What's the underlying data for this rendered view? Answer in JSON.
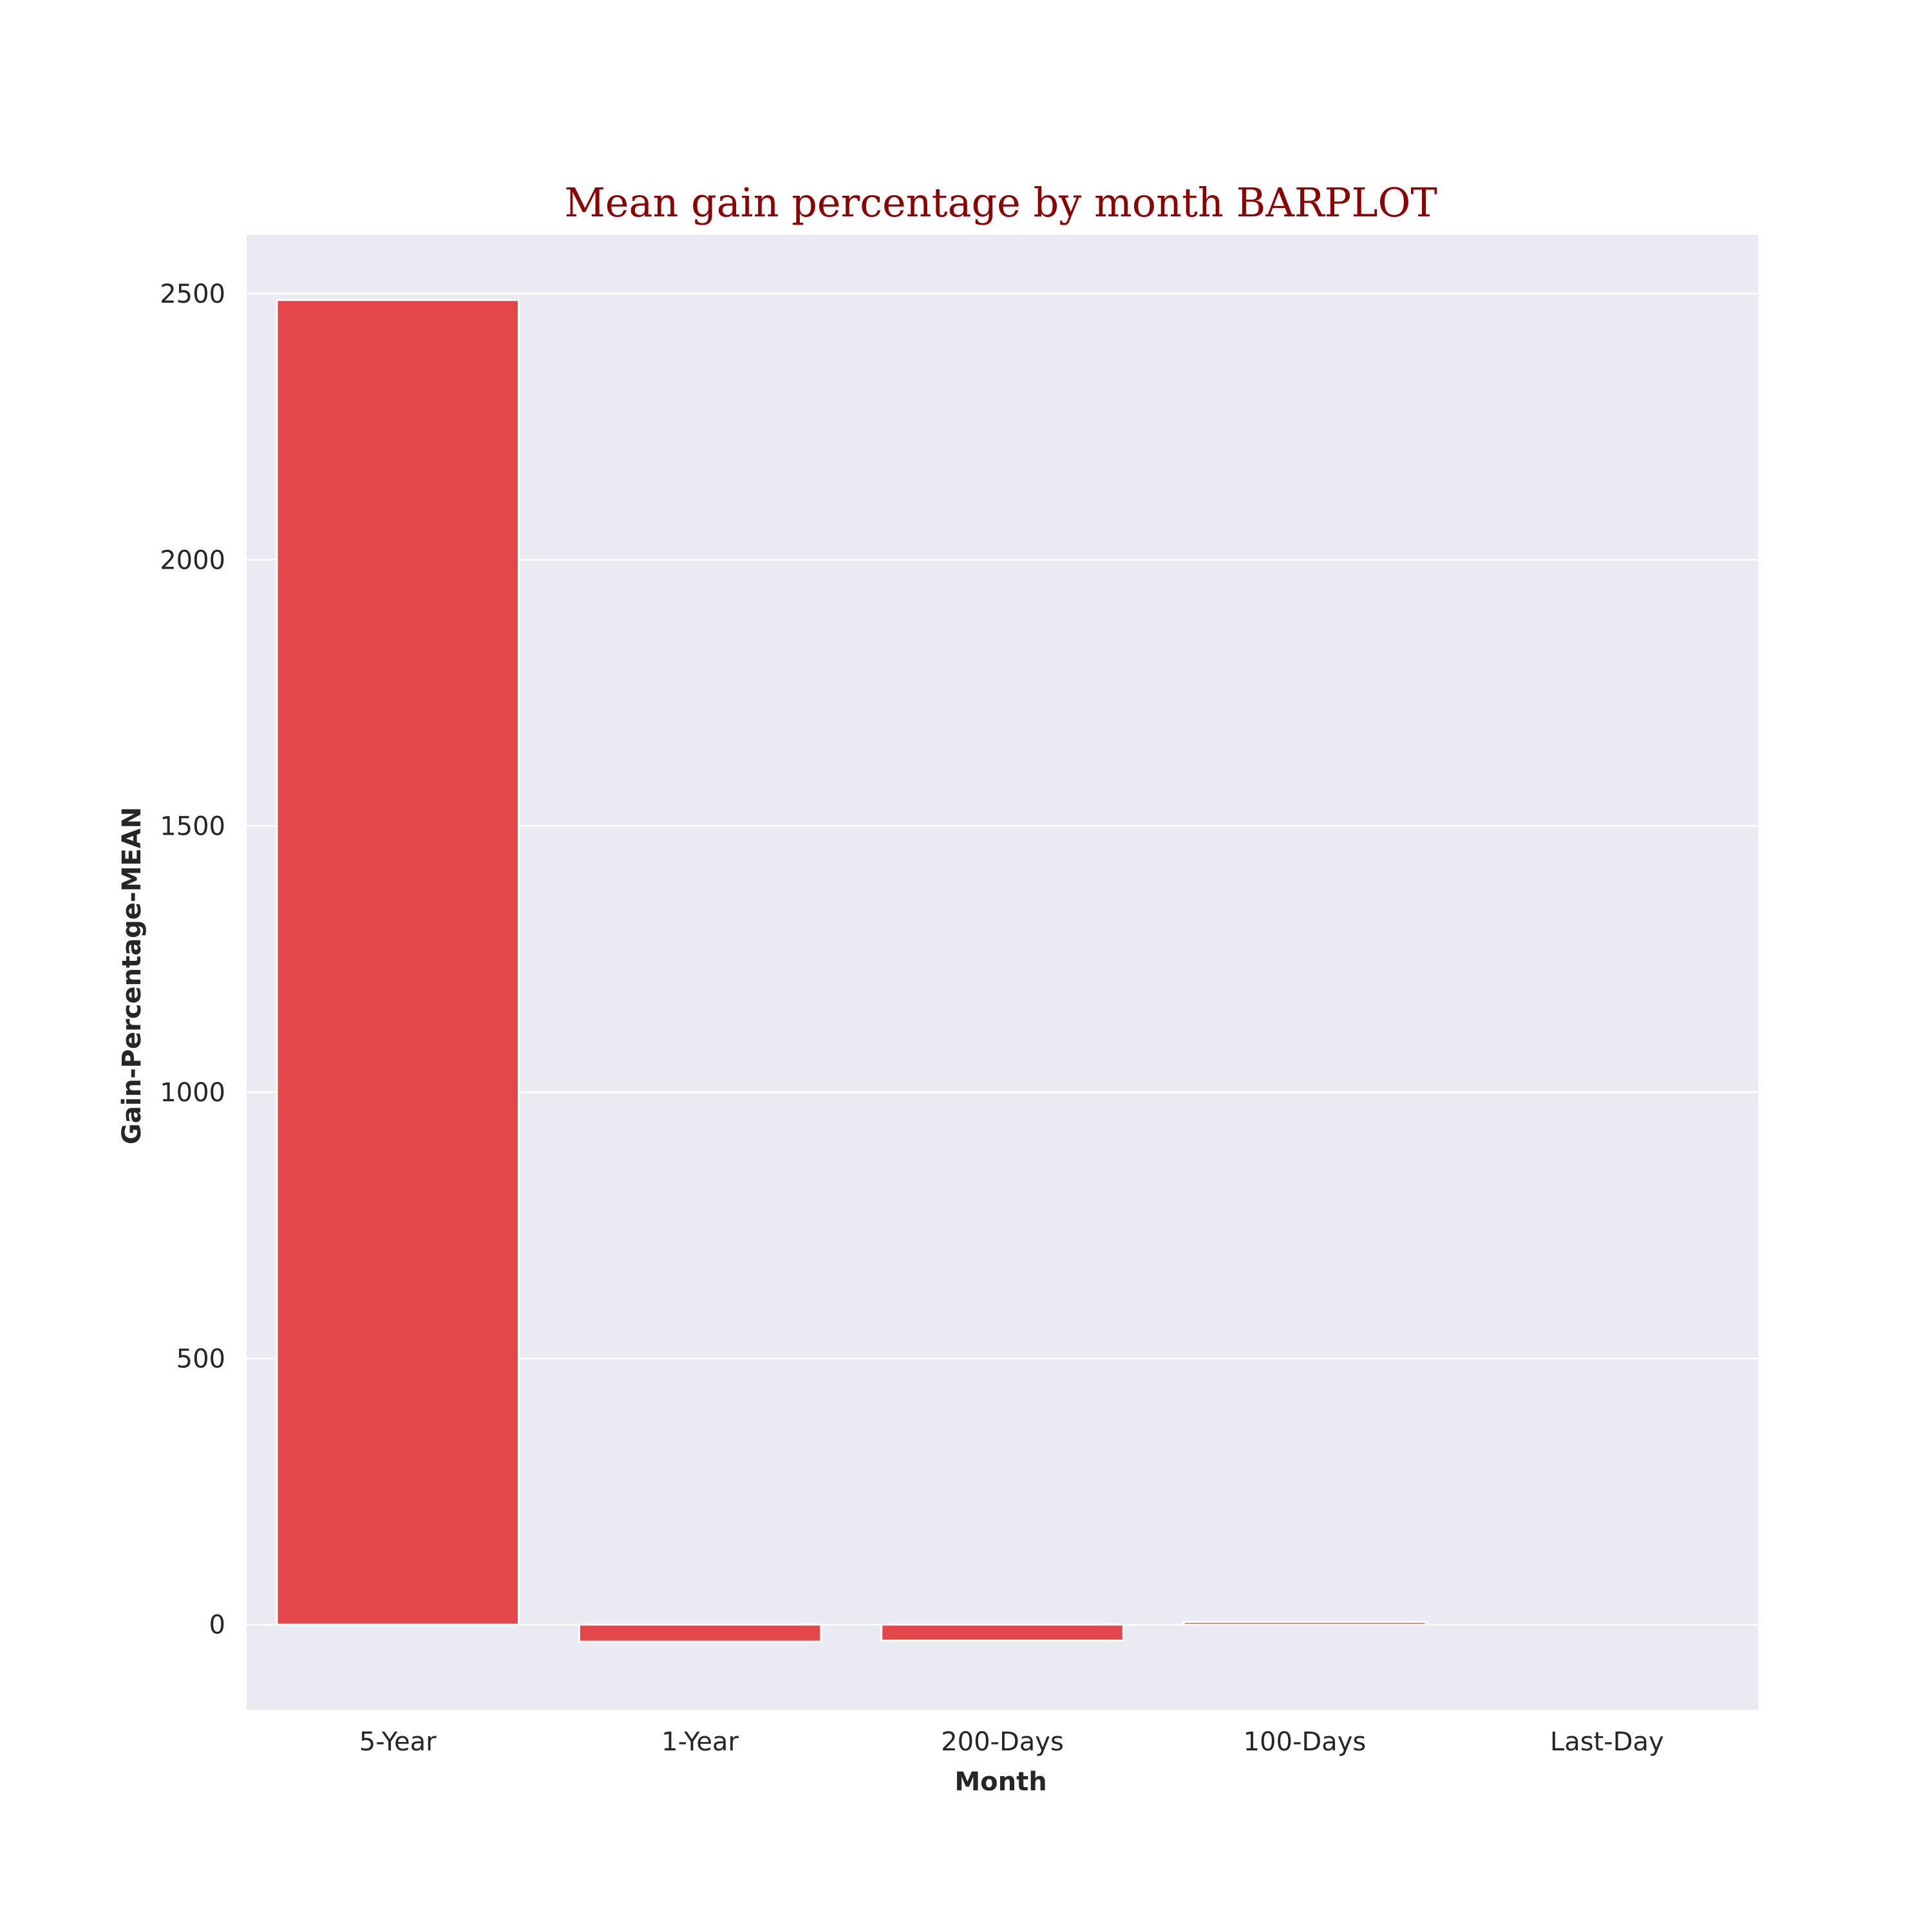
{
  "chart_data": {
    "type": "bar",
    "title": "Mean gain percentage by month BARPLOT",
    "xlabel": "Month",
    "ylabel": "Gain-Percentage-MEAN",
    "categories": [
      "5-Year",
      "1-Year",
      "200-Days",
      "100-Days",
      "Last-Day"
    ],
    "values": [
      2488,
      -32,
      -30,
      5,
      0
    ],
    "ylim": [
      -160,
      2610
    ],
    "yticks": [
      0,
      500,
      1000,
      1500,
      2000,
      2500
    ],
    "grid": true,
    "bar_color": "#e3474b",
    "plot_background": "#eaeaf2",
    "grid_color": "#ffffff",
    "title_color": "#8b0000"
  }
}
